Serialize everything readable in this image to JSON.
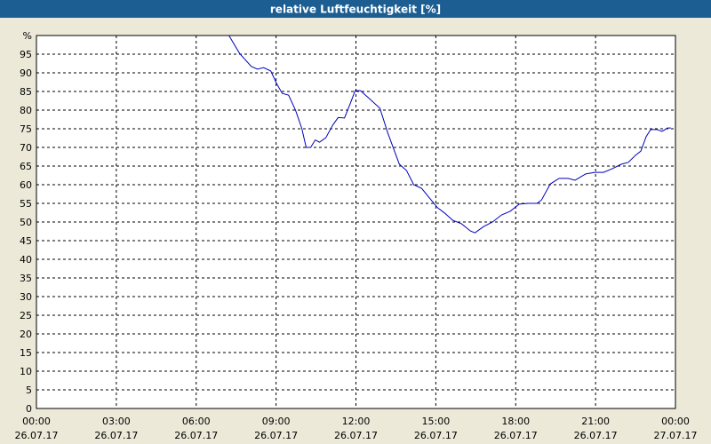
{
  "chart_data": {
    "type": "line",
    "title": "relative Luftfeuchtigkeit [%]",
    "xlim": [
      0,
      24
    ],
    "xticks": [
      {
        "value": 0,
        "label": "00:00",
        "date": "26.07.17"
      },
      {
        "value": 3,
        "label": "03:00",
        "date": "26.07.17"
      },
      {
        "value": 6,
        "label": "06:00",
        "date": "26.07.17"
      },
      {
        "value": 9,
        "label": "09:00",
        "date": "26.07.17"
      },
      {
        "value": 12,
        "label": "12:00",
        "date": "26.07.17"
      },
      {
        "value": 15,
        "label": "15:00",
        "date": "26.07.17"
      },
      {
        "value": 18,
        "label": "18:00",
        "date": "26.07.17"
      },
      {
        "value": 21,
        "label": "21:00",
        "date": "26.07.17"
      },
      {
        "value": 24,
        "label": "00:00",
        "date": "27.07.17"
      }
    ],
    "ylim": [
      0,
      100
    ],
    "yticks": [
      0,
      5,
      10,
      15,
      20,
      25,
      30,
      35,
      40,
      45,
      50,
      55,
      60,
      65,
      70,
      75,
      80,
      85,
      90,
      95,
      {
        "value": 100,
        "label": "%"
      }
    ],
    "grid": true,
    "series": [
      {
        "color": "#0000c0",
        "x": [
          7.23,
          7.63,
          8.07,
          8.3,
          8.53,
          8.8,
          9.03,
          9.23,
          9.47,
          9.73,
          9.97,
          10.13,
          10.3,
          10.47,
          10.63,
          10.87,
          11.13,
          11.33,
          11.57,
          11.8,
          11.97,
          12.17,
          12.47,
          12.9,
          13.2,
          13.63,
          13.9,
          14.17,
          14.47,
          14.73,
          15.07,
          15.33,
          15.63,
          15.97,
          16.3,
          16.47,
          16.8,
          17.13,
          17.47,
          17.8,
          18.13,
          18.47,
          18.8,
          18.97,
          19.3,
          19.63,
          19.97,
          20.23,
          20.63,
          20.97,
          21.3,
          21.63,
          21.97,
          22.23,
          22.5,
          22.7,
          22.9,
          23.07,
          23.3,
          23.5,
          23.7,
          23.83
        ],
        "values": [
          100,
          95.2,
          91.7,
          91,
          91.4,
          90.5,
          87,
          84.5,
          84,
          80,
          75,
          70,
          70,
          72,
          71.4,
          72.6,
          76,
          78,
          77.9,
          82,
          85.2,
          85.2,
          83.3,
          80.5,
          73.8,
          65.5,
          63.8,
          60,
          59,
          56.7,
          53.8,
          52.4,
          50.5,
          49.5,
          47.6,
          47.1,
          48.8,
          50,
          51.9,
          52.9,
          54.8,
          55,
          55,
          55.9,
          60.2,
          61.7,
          61.7,
          61.2,
          62.9,
          63.3,
          63.3,
          64.3,
          65.5,
          66,
          67.9,
          69,
          72.9,
          74.8,
          74.8,
          74.3,
          75.2,
          75.2
        ]
      }
    ]
  }
}
